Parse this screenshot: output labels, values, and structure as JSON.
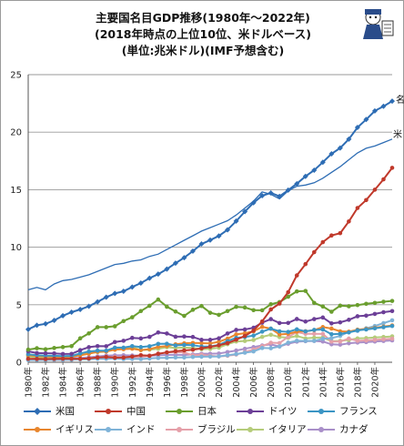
{
  "chart_data": {
    "type": "line",
    "title": [
      "主要国名目GDP推移(1980年～2022年)",
      "(2018年時点の上位10位、米ドルベース)",
      "(単位:兆米ドル)(IMF予想含む)"
    ],
    "x": [
      1980,
      1981,
      1982,
      1983,
      1984,
      1985,
      1986,
      1987,
      1988,
      1989,
      1990,
      1991,
      1992,
      1993,
      1994,
      1995,
      1996,
      1997,
      1998,
      1999,
      2000,
      2001,
      2002,
      2003,
      2004,
      2005,
      2006,
      2007,
      2008,
      2009,
      2010,
      2011,
      2012,
      2013,
      2014,
      2015,
      2016,
      2017,
      2018,
      2019,
      2020,
      2021,
      2022
    ],
    "xticks": [
      "1980年",
      "1982年",
      "1984年",
      "1986年",
      "1988年",
      "1990年",
      "1992年",
      "1994年",
      "1996年",
      "1998年",
      "2000年",
      "2002年",
      "2004年",
      "2006年",
      "2008年",
      "2010年",
      "2012年",
      "2014年",
      "2016年",
      "2018年",
      "2020年"
    ],
    "ylim": [
      0,
      25
    ],
    "yticks": [
      0,
      5,
      10,
      15,
      20,
      25
    ],
    "grid": "horizontal",
    "series": [
      {
        "name": "米国",
        "color": "#2e6db4",
        "marker": "diamond",
        "values": [
          2.86,
          3.21,
          3.34,
          3.64,
          4.04,
          4.35,
          4.59,
          4.87,
          5.25,
          5.66,
          5.98,
          6.17,
          6.54,
          6.88,
          7.31,
          7.66,
          8.1,
          8.61,
          9.09,
          9.66,
          10.28,
          10.62,
          10.98,
          11.51,
          12.27,
          13.09,
          13.86,
          14.48,
          14.72,
          14.42,
          14.96,
          15.52,
          16.16,
          16.69,
          17.39,
          18.12,
          18.62,
          19.39,
          20.41,
          21.1,
          21.85,
          22.25,
          22.7
        ]
      },
      {
        "name": "中国",
        "color": "#c0392b",
        "marker": "circle",
        "values": [
          0.3,
          0.29,
          0.28,
          0.3,
          0.31,
          0.31,
          0.3,
          0.33,
          0.41,
          0.46,
          0.4,
          0.41,
          0.49,
          0.62,
          0.56,
          0.73,
          0.86,
          0.96,
          1.03,
          1.09,
          1.21,
          1.34,
          1.47,
          1.66,
          1.96,
          2.29,
          2.75,
          3.55,
          4.59,
          5.1,
          6.09,
          7.55,
          8.53,
          9.57,
          10.44,
          11.02,
          11.22,
          12.24,
          13.41,
          14.1,
          15.0,
          15.9,
          16.9
        ]
      },
      {
        "name": "日本",
        "color": "#6a9e2e",
        "marker": "circle",
        "values": [
          1.1,
          1.22,
          1.13,
          1.24,
          1.32,
          1.4,
          2.08,
          2.51,
          3.05,
          3.05,
          3.13,
          3.58,
          3.91,
          4.45,
          4.91,
          5.45,
          4.83,
          4.41,
          4.03,
          4.56,
          4.89,
          4.3,
          4.12,
          4.45,
          4.82,
          4.76,
          4.53,
          4.52,
          5.04,
          5.23,
          5.7,
          6.16,
          6.2,
          5.16,
          4.85,
          4.39,
          4.92,
          4.87,
          4.97,
          5.08,
          5.16,
          5.26,
          5.33
        ]
      },
      {
        "name": "ドイツ",
        "color": "#6c3f97",
        "marker": "circle",
        "values": [
          0.95,
          0.8,
          0.78,
          0.77,
          0.72,
          0.73,
          1.05,
          1.31,
          1.4,
          1.39,
          1.76,
          1.87,
          2.12,
          2.07,
          2.21,
          2.59,
          2.5,
          2.22,
          2.24,
          2.2,
          1.95,
          1.95,
          2.08,
          2.5,
          2.81,
          2.85,
          3.0,
          3.44,
          3.75,
          3.41,
          3.42,
          3.76,
          3.54,
          3.75,
          3.89,
          3.38,
          3.47,
          3.69,
          4.0,
          4.05,
          4.2,
          4.35,
          4.45
        ]
      },
      {
        "name": "フランス",
        "color": "#3b95c4",
        "marker": "circle",
        "values": [
          0.7,
          0.62,
          0.58,
          0.56,
          0.53,
          0.55,
          0.77,
          0.93,
          1.01,
          1.01,
          1.27,
          1.27,
          1.4,
          1.32,
          1.39,
          1.6,
          1.61,
          1.46,
          1.51,
          1.49,
          1.36,
          1.38,
          1.5,
          1.84,
          2.12,
          2.2,
          2.32,
          2.66,
          2.92,
          2.69,
          2.64,
          2.86,
          2.68,
          2.81,
          2.85,
          2.44,
          2.47,
          2.59,
          2.78,
          2.85,
          2.95,
          3.05,
          3.15
        ]
      },
      {
        "name": "イギリス",
        "color": "#e8862e",
        "marker": "circle",
        "values": [
          0.6,
          0.55,
          0.51,
          0.48,
          0.46,
          0.49,
          0.6,
          0.74,
          0.91,
          0.93,
          1.09,
          1.14,
          1.18,
          1.06,
          1.14,
          1.34,
          1.41,
          1.56,
          1.65,
          1.68,
          1.66,
          1.64,
          1.78,
          2.05,
          2.42,
          2.52,
          2.69,
          3.08,
          2.92,
          2.41,
          2.48,
          2.66,
          2.7,
          2.79,
          3.06,
          2.93,
          2.69,
          2.66,
          2.83,
          2.9,
          3.0,
          3.1,
          3.2
        ]
      },
      {
        "name": "インド",
        "color": "#7fb3d8",
        "marker": "circle",
        "values": [
          0.19,
          0.2,
          0.2,
          0.22,
          0.21,
          0.23,
          0.25,
          0.27,
          0.3,
          0.3,
          0.33,
          0.28,
          0.29,
          0.28,
          0.33,
          0.37,
          0.39,
          0.42,
          0.42,
          0.46,
          0.48,
          0.49,
          0.51,
          0.61,
          0.71,
          0.83,
          0.94,
          1.24,
          1.22,
          1.37,
          1.71,
          1.87,
          1.86,
          1.86,
          2.04,
          2.1,
          2.29,
          2.65,
          2.72,
          2.95,
          3.15,
          3.4,
          3.65
        ]
      },
      {
        "name": "ブラジル",
        "color": "#e5a0a9",
        "marker": "circle",
        "values": [
          0.24,
          0.26,
          0.28,
          0.2,
          0.2,
          0.22,
          0.27,
          0.29,
          0.33,
          0.45,
          0.46,
          0.41,
          0.39,
          0.44,
          0.56,
          0.77,
          0.85,
          0.88,
          0.86,
          0.6,
          0.66,
          0.56,
          0.51,
          0.56,
          0.67,
          0.89,
          1.11,
          1.4,
          1.7,
          1.67,
          2.21,
          2.62,
          2.47,
          2.47,
          2.46,
          1.8,
          1.8,
          2.06,
          1.87,
          1.9,
          1.95,
          2.0,
          2.05
        ]
      },
      {
        "name": "イタリア",
        "color": "#b5cc7a",
        "marker": "circle",
        "values": [
          0.48,
          0.43,
          0.43,
          0.44,
          0.44,
          0.45,
          0.63,
          0.79,
          0.88,
          0.93,
          1.18,
          1.24,
          1.32,
          1.06,
          1.1,
          1.17,
          1.31,
          1.24,
          1.27,
          1.25,
          1.14,
          1.16,
          1.27,
          1.57,
          1.8,
          1.85,
          1.94,
          2.21,
          2.39,
          2.19,
          2.13,
          2.28,
          2.07,
          2.14,
          2.15,
          1.83,
          1.86,
          1.94,
          2.07,
          2.1,
          2.15,
          2.2,
          2.25
        ]
      },
      {
        "name": "カナダ",
        "color": "#a98fc9",
        "marker": "circle",
        "values": [
          0.27,
          0.3,
          0.31,
          0.34,
          0.35,
          0.36,
          0.37,
          0.43,
          0.51,
          0.57,
          0.6,
          0.61,
          0.59,
          0.58,
          0.58,
          0.6,
          0.63,
          0.65,
          0.63,
          0.68,
          0.74,
          0.74,
          0.76,
          0.89,
          1.02,
          1.17,
          1.32,
          1.46,
          1.55,
          1.37,
          1.61,
          1.79,
          1.83,
          1.85,
          1.8,
          1.56,
          1.53,
          1.65,
          1.71,
          1.75,
          1.8,
          1.85,
          1.9
        ]
      },
      {
        "name": "名目GDP(米国)上位",
        "color": "#2e6db4",
        "marker": "none",
        "values": [
          6.3,
          6.5,
          6.3,
          6.8,
          7.1,
          7.2,
          7.4,
          7.6,
          7.9,
          8.2,
          8.5,
          8.6,
          8.8,
          8.9,
          9.2,
          9.4,
          9.8,
          10.2,
          10.6,
          11.0,
          11.4,
          11.7,
          12.0,
          12.3,
          12.8,
          13.4,
          14.0,
          14.8,
          14.6,
          14.2,
          14.9,
          15.3,
          15.4,
          15.6,
          16.0,
          16.5,
          17.0,
          17.6,
          18.2,
          18.6,
          18.8,
          19.1,
          19.4
        ]
      }
    ],
    "end_labels": {
      "upper": "名",
      "lower": "米"
    }
  },
  "legend": [
    {
      "label": "米国",
      "color": "#2e6db4"
    },
    {
      "label": "中国",
      "color": "#c0392b"
    },
    {
      "label": "日本",
      "color": "#6a9e2e"
    },
    {
      "label": "ドイツ",
      "color": "#6c3f97"
    },
    {
      "label": "フランス",
      "color": "#3b95c4"
    },
    {
      "label": "イギリス",
      "color": "#e8862e"
    },
    {
      "label": "インド",
      "color": "#7fb3d8"
    },
    {
      "label": "ブラジル",
      "color": "#e5a0a9"
    },
    {
      "label": "イタリア",
      "color": "#b5cc7a"
    },
    {
      "label": "カナダ",
      "color": "#a98fc9"
    }
  ],
  "mascot": {
    "icon": "mascot-icon"
  }
}
